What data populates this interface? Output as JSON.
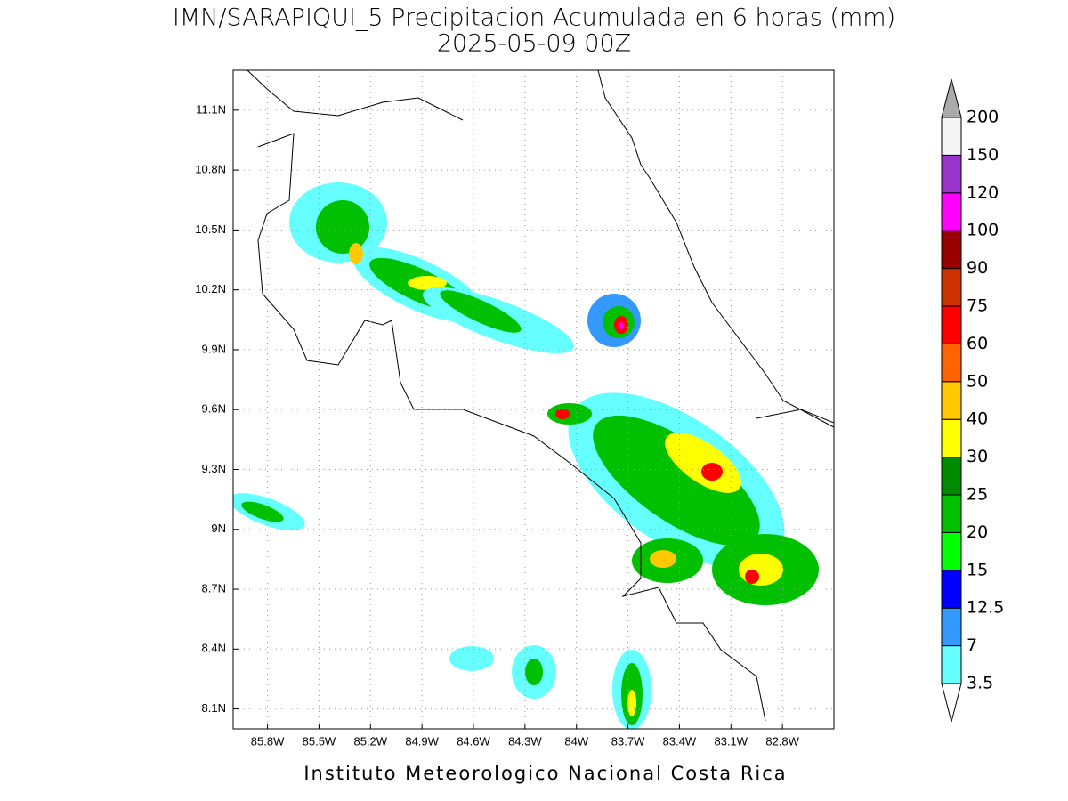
{
  "title": "IMN/SARAPIQUI_5 Precipitacion Acumulada en 6 horas (mm)",
  "subtitle": "2025-05-09 00Z",
  "footer": "Instituto Meteorologico Nacional Costa Rica",
  "map": {
    "xlim": [
      -86.0,
      -82.5
    ],
    "ylim": [
      8.0,
      11.3
    ],
    "grid": true,
    "xticks": [
      {
        "value": -85.8,
        "label": "85.8W"
      },
      {
        "value": -85.5,
        "label": "85.5W"
      },
      {
        "value": -85.2,
        "label": "85.2W"
      },
      {
        "value": -84.9,
        "label": "84.9W"
      },
      {
        "value": -84.6,
        "label": "84.6W"
      },
      {
        "value": -84.3,
        "label": "84.3W"
      },
      {
        "value": -84.0,
        "label": "84W"
      },
      {
        "value": -83.7,
        "label": "83.7W"
      },
      {
        "value": -83.4,
        "label": "83.4W"
      },
      {
        "value": -83.1,
        "label": "83.1W"
      },
      {
        "value": -82.8,
        "label": "82.8W"
      }
    ],
    "yticks": [
      {
        "value": 8.1,
        "label": "8.1N"
      },
      {
        "value": 8.4,
        "label": "8.4N"
      },
      {
        "value": 8.7,
        "label": "8.7N"
      },
      {
        "value": 9.0,
        "label": "9N"
      },
      {
        "value": 9.3,
        "label": "9.3N"
      },
      {
        "value": 9.6,
        "label": "9.6N"
      },
      {
        "value": 9.9,
        "label": "9.9N"
      },
      {
        "value": 10.2,
        "label": "10.2N"
      },
      {
        "value": 10.5,
        "label": "10.5N"
      },
      {
        "value": 10.8,
        "label": "10.8N"
      },
      {
        "value": 11.1,
        "label": "11.1N"
      }
    ]
  },
  "colorbar": {
    "levels": [
      3.5,
      7,
      12.5,
      15,
      20,
      25,
      30,
      40,
      50,
      60,
      75,
      90,
      100,
      120,
      150,
      200
    ],
    "colors": [
      "#66ffff",
      "#3399ff",
      "#0000ff",
      "#00ff00",
      "#00c000",
      "#008c00",
      "#ffff00",
      "#ffc800",
      "#ff6400",
      "#ff0000",
      "#cc3300",
      "#990000",
      "#ff00ff",
      "#9933cc",
      "#f5f5f5"
    ],
    "under_color": "#ffffff",
    "over_color": "#aaaaaa"
  }
}
